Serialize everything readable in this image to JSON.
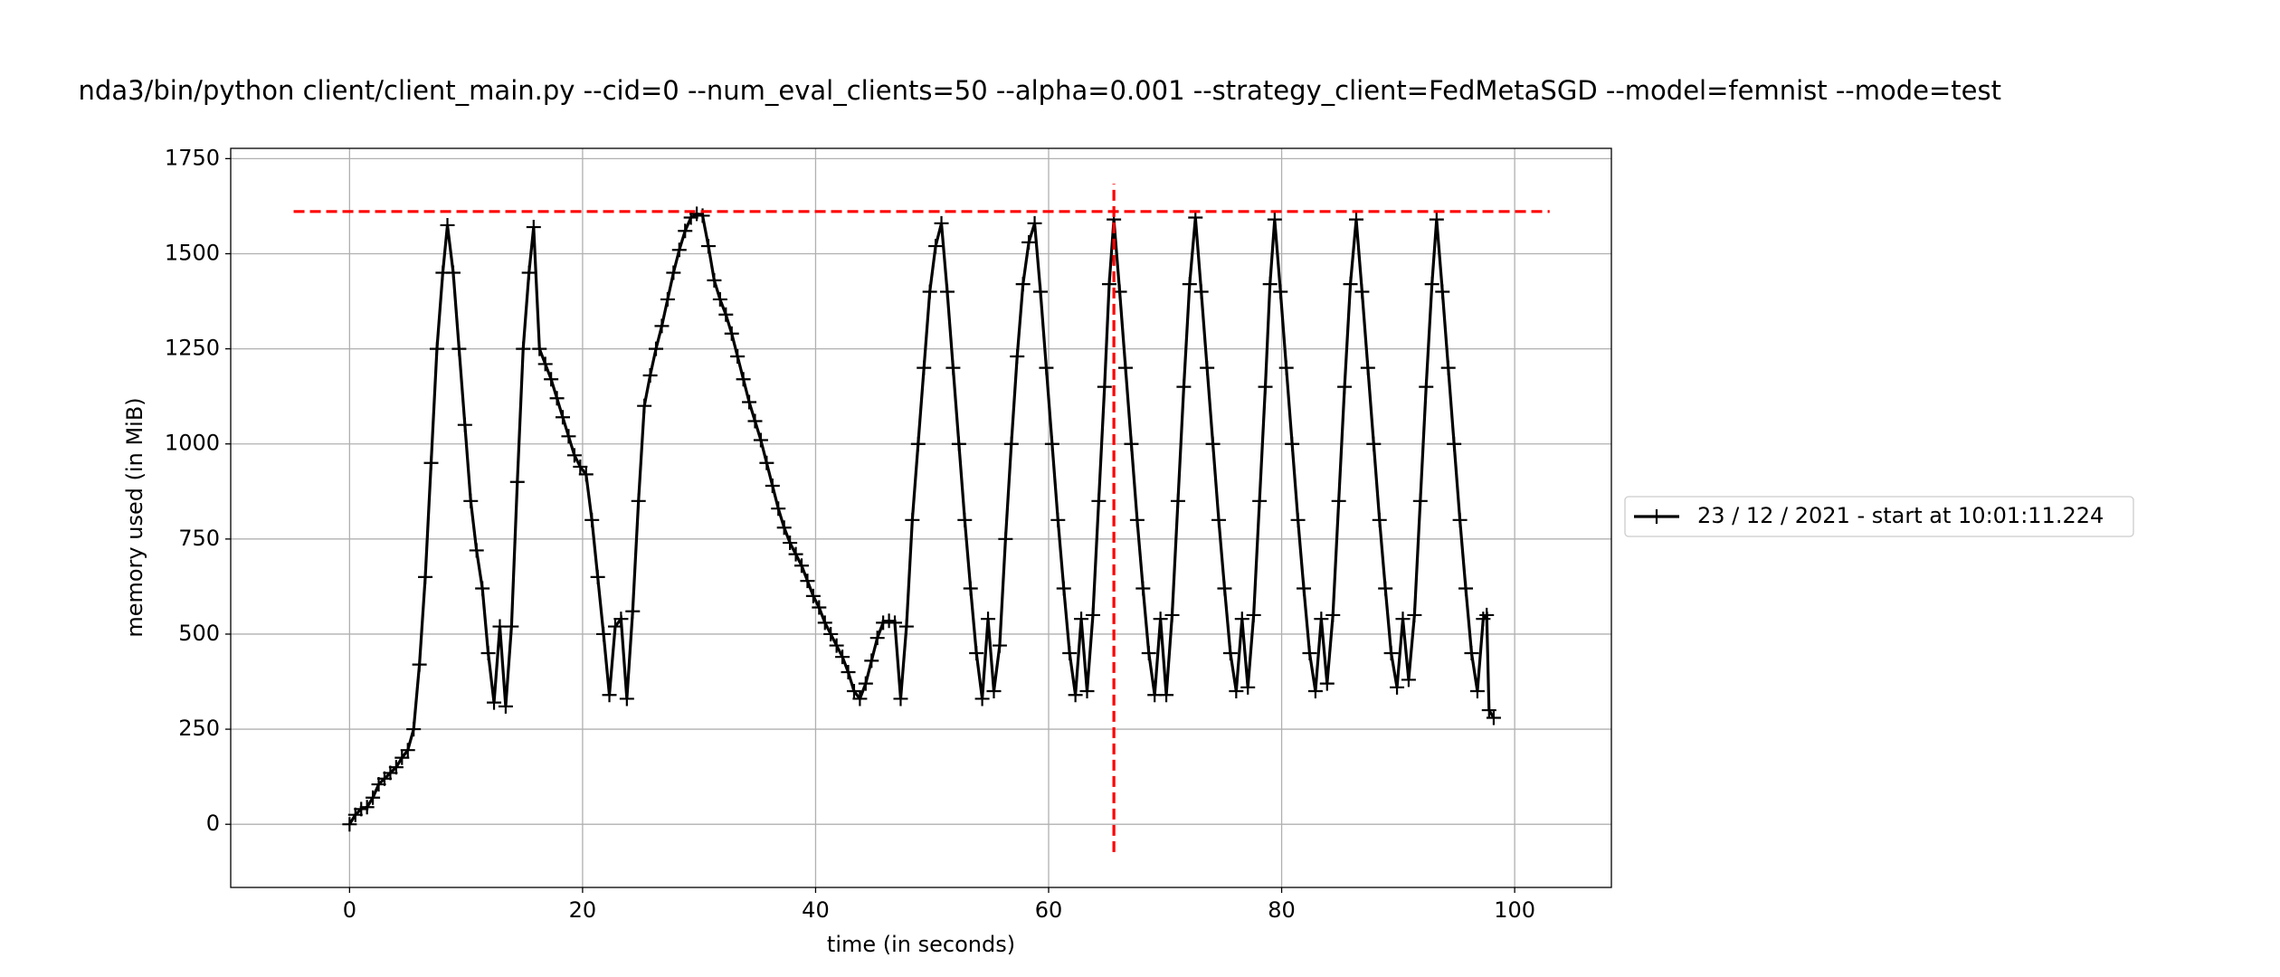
{
  "chart_data": {
    "type": "line",
    "title": "nda3/bin/python client/client_main.py --cid=0 --num_eval_clients=50 --alpha=0.001 --strategy_client=FedMetaSGD --model=femnist --mode=test",
    "x_label": "time (in seconds)",
    "y_label": "memory used (in MiB)",
    "xlim": [
      -10.2,
      108.3
    ],
    "ylim": [
      -166,
      1777
    ],
    "xticks": [
      0,
      20,
      40,
      60,
      80,
      100
    ],
    "yticks": [
      0,
      250,
      500,
      750,
      1000,
      1250,
      1500,
      1750
    ],
    "grid": true,
    "legend": "outside right",
    "series": [
      {
        "name": "23 / 12 / 2021 - start at 10:01:11.224",
        "color": "#000000",
        "x": [
          0,
          0.5,
          1,
          1.5,
          2,
          2.5,
          3,
          3.5,
          4,
          4.5,
          5,
          5.5,
          6,
          6.5,
          7,
          7.5,
          8,
          8.4,
          8.9,
          9.4,
          9.9,
          10.4,
          10.9,
          11.4,
          11.9,
          12.4,
          12.9,
          13.4,
          13.9,
          14.4,
          14.9,
          15.4,
          15.8,
          16.3,
          16.8,
          17.3,
          17.8,
          18.3,
          18.8,
          19.3,
          19.8,
          20.3,
          20.8,
          21.3,
          21.8,
          22.3,
          22.8,
          23.3,
          23.8,
          24.3,
          24.8,
          25.3,
          25.8,
          26.3,
          26.8,
          27.3,
          27.8,
          28.3,
          28.8,
          29.3,
          29.8,
          30.3,
          30.8,
          31.3,
          31.8,
          32.3,
          32.8,
          33.3,
          33.8,
          34.3,
          34.8,
          35.3,
          35.8,
          36.3,
          36.8,
          37.3,
          37.8,
          38.3,
          38.8,
          39.3,
          39.8,
          40.3,
          40.8,
          41.3,
          41.8,
          42.3,
          42.8,
          43.3,
          43.8,
          44.3,
          44.8,
          45.3,
          45.8,
          46.3,
          46.8,
          47.3,
          47.8,
          48.3,
          48.8,
          49.3,
          49.8,
          50.3,
          50.8,
          51.3,
          51.8,
          52.3,
          52.8,
          53.3,
          53.8,
          54.3,
          54.8,
          55.3,
          55.8,
          56.3,
          56.8,
          57.3,
          57.8,
          58.3,
          58.8,
          59.3,
          59.8,
          60.3,
          60.8,
          61.3,
          61.8,
          62.3,
          62.8,
          63.3,
          63.8,
          64.3,
          64.8,
          65.2,
          65.6,
          66.1,
          66.6,
          67.1,
          67.6,
          68.1,
          68.6,
          69.1,
          69.6,
          70.1,
          70.6,
          71.1,
          71.6,
          72.1,
          72.6,
          73.1,
          73.6,
          74.1,
          74.6,
          75.1,
          75.6,
          76.1,
          76.6,
          77.1,
          77.6,
          78.1,
          78.6,
          79.0,
          79.4,
          79.9,
          80.4,
          80.9,
          81.4,
          81.9,
          82.4,
          82.9,
          83.4,
          83.9,
          84.4,
          84.9,
          85.4,
          85.9,
          86.4,
          86.9,
          87.4,
          87.9,
          88.4,
          88.9,
          89.4,
          89.9,
          90.4,
          90.9,
          91.4,
          91.9,
          92.4,
          92.9,
          93.3,
          93.8,
          94.3,
          94.8,
          95.3,
          95.8,
          96.3,
          96.8,
          97.3,
          97.6,
          97.8,
          98.2
        ],
        "values": [
          0,
          25,
          40,
          45,
          70,
          105,
          120,
          135,
          150,
          175,
          195,
          250,
          420,
          650,
          950,
          1250,
          1450,
          1575,
          1450,
          1250,
          1050,
          850,
          720,
          620,
          450,
          320,
          520,
          310,
          520,
          900,
          1250,
          1450,
          1570,
          1250,
          1210,
          1170,
          1120,
          1070,
          1020,
          970,
          940,
          920,
          800,
          650,
          500,
          340,
          520,
          540,
          330,
          560,
          850,
          1100,
          1180,
          1250,
          1310,
          1380,
          1450,
          1510,
          1560,
          1595,
          1605,
          1600,
          1520,
          1430,
          1380,
          1340,
          1290,
          1230,
          1170,
          1110,
          1060,
          1010,
          950,
          890,
          830,
          780,
          740,
          710,
          680,
          640,
          600,
          570,
          530,
          500,
          470,
          440,
          400,
          350,
          330,
          370,
          430,
          490,
          530,
          535,
          530,
          330,
          520,
          800,
          1000,
          1200,
          1400,
          1520,
          1580,
          1400,
          1200,
          1000,
          800,
          620,
          450,
          330,
          540,
          350,
          470,
          750,
          1000,
          1230,
          1420,
          1530,
          1580,
          1400,
          1200,
          1000,
          800,
          620,
          450,
          340,
          540,
          350,
          550,
          850,
          1150,
          1420,
          1590,
          1400,
          1200,
          1000,
          800,
          620,
          450,
          340,
          540,
          340,
          550,
          850,
          1150,
          1420,
          1595,
          1400,
          1200,
          1000,
          800,
          620,
          450,
          350,
          540,
          360,
          550,
          850,
          1150,
          1420,
          1590,
          1400,
          1200,
          1000,
          800,
          620,
          450,
          350,
          540,
          370,
          550,
          850,
          1150,
          1420,
          1590,
          1400,
          1200,
          1000,
          800,
          620,
          450,
          360,
          540,
          380,
          550,
          850,
          1150,
          1420,
          1590,
          1400,
          1200,
          1000,
          800,
          620,
          450,
          350,
          540,
          550,
          300,
          280
        ]
      }
    ],
    "reference_lines": [
      {
        "orientation": "horizontal",
        "value": 1611,
        "start": -4.8,
        "end": 103,
        "color": "#ff0000"
      },
      {
        "orientation": "vertical",
        "value": 65.6,
        "start": -73,
        "end": 1684,
        "color": "#ff0000"
      }
    ]
  }
}
